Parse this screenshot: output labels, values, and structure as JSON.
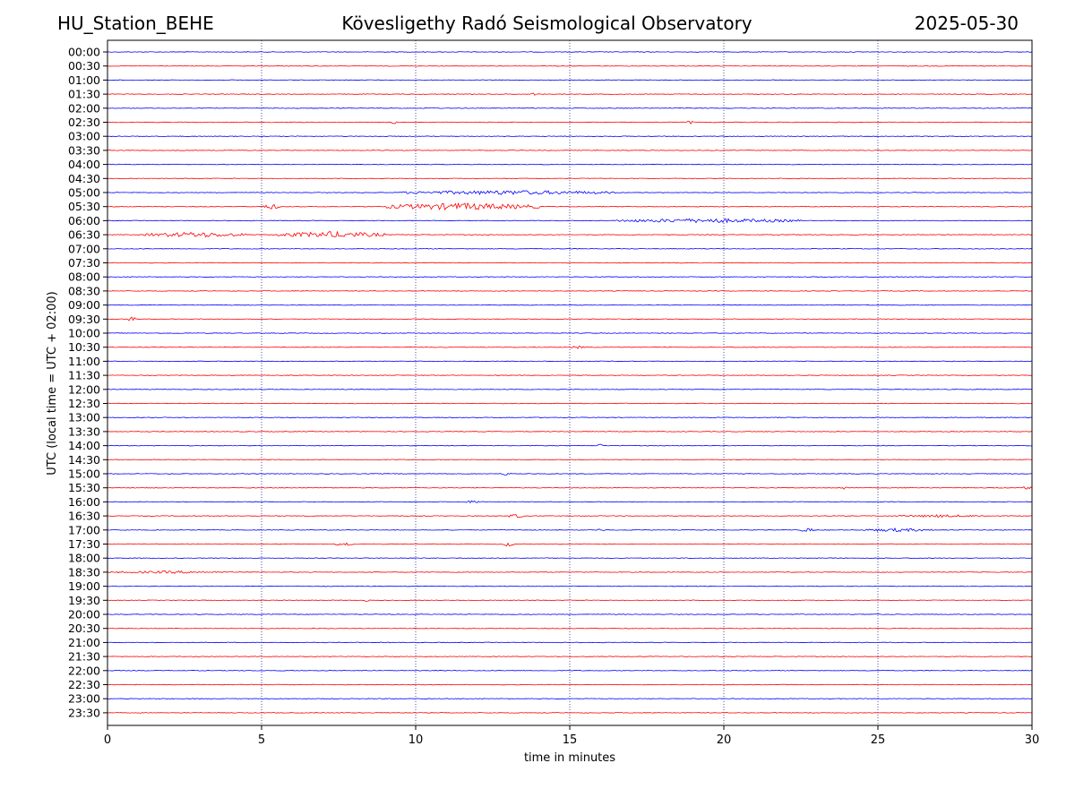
{
  "header": {
    "station": "HU_Station_BEHE",
    "title": "Kövesligethy Radó Seismological Observatory",
    "date": "2025-05-30"
  },
  "colors": {
    "line_a": "#0000ff",
    "line_b": "#ff0000",
    "grid": "#000080",
    "axis": "#000000"
  },
  "chart_data": {
    "type": "line",
    "xlabel": "time in minutes",
    "ylabel": "UTC (local time = UTC + 02:00)",
    "xlim": [
      0,
      30
    ],
    "x_ticks": [
      0,
      5,
      10,
      15,
      20,
      25,
      30
    ],
    "y_ticks": [
      "00:00",
      "00:30",
      "01:00",
      "01:30",
      "02:00",
      "02:30",
      "03:00",
      "03:30",
      "04:00",
      "04:30",
      "05:00",
      "05:30",
      "06:00",
      "06:30",
      "07:00",
      "07:30",
      "08:00",
      "08:30",
      "09:00",
      "09:30",
      "10:00",
      "10:30",
      "11:00",
      "11:30",
      "12:00",
      "12:30",
      "13:00",
      "13:30",
      "14:00",
      "14:30",
      "15:00",
      "15:30",
      "16:00",
      "16:30",
      "17:00",
      "17:30",
      "18:00",
      "18:30",
      "19:00",
      "19:30",
      "20:00",
      "20:30",
      "21:00",
      "21:30",
      "22:00",
      "22:30",
      "23:00",
      "23:30"
    ],
    "grid": "vertical dotted at x ticks",
    "trace_colors": "alternating blue / red per 30-minute row",
    "events": [
      {
        "row": "01:30",
        "start_min": 13.7,
        "end_min": 13.9,
        "amp": 2
      },
      {
        "row": "02:30",
        "start_min": 9.2,
        "end_min": 9.4,
        "amp": 2
      },
      {
        "row": "02:30",
        "start_min": 18.8,
        "end_min": 19.0,
        "amp": 2
      },
      {
        "row": "05:00",
        "start_min": 9.5,
        "end_min": 16.5,
        "amp": 2.5
      },
      {
        "row": "05:30",
        "start_min": 5.0,
        "end_min": 5.6,
        "amp": 3
      },
      {
        "row": "05:30",
        "start_min": 9.0,
        "end_min": 14.0,
        "amp": 4
      },
      {
        "row": "06:00",
        "start_min": 16.5,
        "end_min": 22.5,
        "amp": 2.5
      },
      {
        "row": "06:30",
        "start_min": 1.2,
        "end_min": 4.5,
        "amp": 3
      },
      {
        "row": "06:30",
        "start_min": 5.5,
        "end_min": 9.0,
        "amp": 3.5
      },
      {
        "row": "09:30",
        "start_min": 0.6,
        "end_min": 0.9,
        "amp": 3
      },
      {
        "row": "10:30",
        "start_min": 15.0,
        "end_min": 15.5,
        "amp": 1.5
      },
      {
        "row": "14:00",
        "start_min": 15.9,
        "end_min": 16.1,
        "amp": 2
      },
      {
        "row": "15:00",
        "start_min": 12.8,
        "end_min": 13.1,
        "amp": 2
      },
      {
        "row": "15:30",
        "start_min": 23.8,
        "end_min": 24.0,
        "amp": 2
      },
      {
        "row": "15:30",
        "start_min": 29.7,
        "end_min": 30.0,
        "amp": 2
      },
      {
        "row": "16:00",
        "start_min": 11.5,
        "end_min": 12.2,
        "amp": 1.5
      },
      {
        "row": "16:30",
        "start_min": 13.0,
        "end_min": 13.5,
        "amp": 2.5
      },
      {
        "row": "16:30",
        "start_min": 25.5,
        "end_min": 28.5,
        "amp": 1.5
      },
      {
        "row": "17:00",
        "start_min": 15.9,
        "end_min": 16.1,
        "amp": 2
      },
      {
        "row": "17:00",
        "start_min": 22.5,
        "end_min": 22.9,
        "amp": 2.5
      },
      {
        "row": "17:00",
        "start_min": 24.5,
        "end_min": 26.8,
        "amp": 2
      },
      {
        "row": "17:30",
        "start_min": 7.4,
        "end_min": 8.0,
        "amp": 2.5
      },
      {
        "row": "17:30",
        "start_min": 12.8,
        "end_min": 13.2,
        "amp": 2.5
      },
      {
        "row": "18:30",
        "start_min": 0.0,
        "end_min": 4.0,
        "amp": 1.5
      },
      {
        "row": "19:30",
        "start_min": 8.3,
        "end_min": 8.5,
        "amp": 1.5
      }
    ]
  }
}
